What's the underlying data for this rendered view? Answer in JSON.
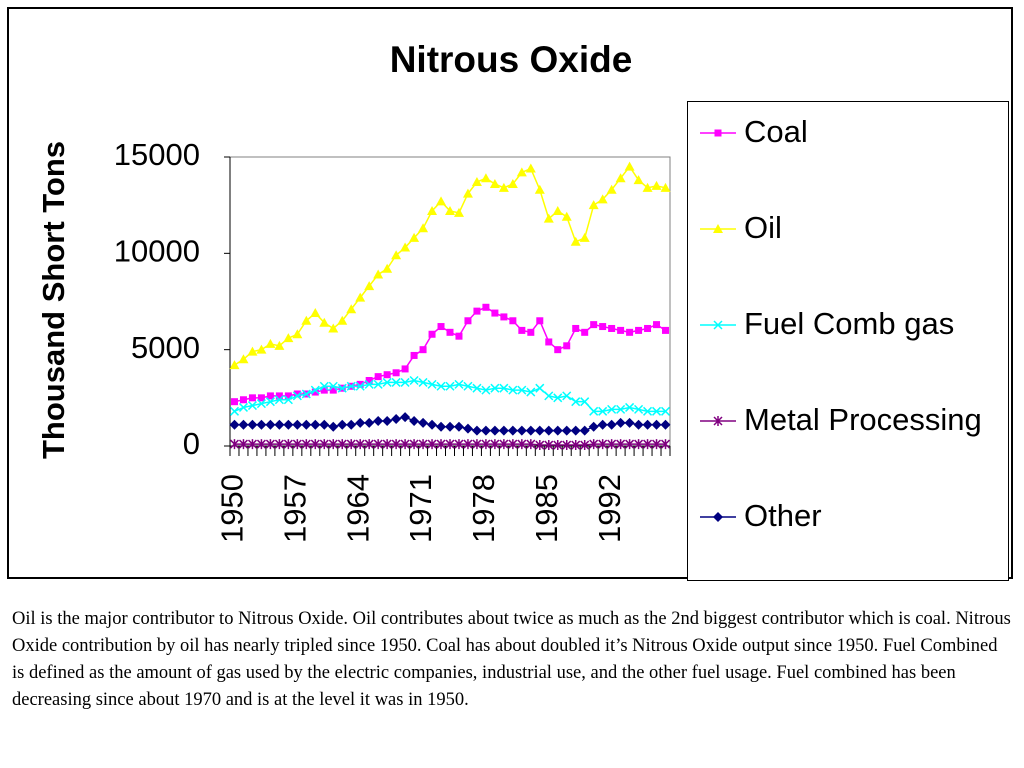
{
  "chart_data": {
    "type": "line",
    "title": "Nitrous Oxide",
    "y_label": "Thousand Short Tons",
    "categories": [
      "1950",
      null,
      null,
      null,
      null,
      null,
      null,
      "1957",
      null,
      null,
      null,
      null,
      null,
      null,
      "1964",
      null,
      null,
      null,
      null,
      null,
      null,
      "1971",
      null,
      null,
      null,
      null,
      null,
      null,
      "1978",
      null,
      null,
      null,
      null,
      null,
      null,
      "1985",
      null,
      null,
      null,
      null,
      null,
      null,
      "1992",
      null,
      null,
      null,
      null,
      null,
      null
    ],
    "ylim": [
      0,
      15000
    ],
    "yticks": [
      0,
      5000,
      10000,
      15000
    ],
    "series": [
      {
        "name": "Coal",
        "color": "#ff00ff",
        "marker": "square",
        "values": [
          2300,
          2400,
          2500,
          2500,
          2600,
          2600,
          2600,
          2700,
          2700,
          2800,
          2900,
          2900,
          3000,
          3100,
          3200,
          3400,
          3600,
          3700,
          3800,
          4000,
          4700,
          5000,
          5800,
          6200,
          5900,
          5700,
          6500,
          7000,
          7200,
          6900,
          6700,
          6500,
          6000,
          5900,
          6500,
          5400,
          5000,
          5200,
          6100,
          5900,
          6300,
          6200,
          6100,
          6000,
          5900,
          6000,
          6100,
          6300,
          6000
        ]
      },
      {
        "name": "Oil",
        "color": "#ffff00",
        "marker": "triangle",
        "values": [
          4200,
          4500,
          4900,
          5000,
          5300,
          5200,
          5600,
          5800,
          6500,
          6900,
          6400,
          6100,
          6500,
          7100,
          7700,
          8300,
          8900,
          9200,
          9900,
          10300,
          10800,
          11300,
          12200,
          12700,
          12200,
          12100,
          13100,
          13700,
          13900,
          13600,
          13400,
          13600,
          14200,
          14400,
          13300,
          11800,
          12200,
          11900,
          10600,
          10800,
          12500,
          12800,
          13300,
          13900,
          14500,
          13800,
          13400,
          13500,
          13400
        ]
      },
      {
        "name": "Fuel Comb gas",
        "color": "#00ffff",
        "marker": "x",
        "values": [
          1800,
          2000,
          2100,
          2200,
          2300,
          2400,
          2400,
          2600,
          2700,
          2900,
          3100,
          3100,
          3000,
          3100,
          3100,
          3200,
          3200,
          3300,
          3300,
          3300,
          3400,
          3300,
          3200,
          3100,
          3100,
          3200,
          3100,
          3000,
          2900,
          3000,
          3000,
          2900,
          2900,
          2800,
          3000,
          2600,
          2500,
          2600,
          2300,
          2300,
          1800,
          1800,
          1900,
          1900,
          2000,
          1900,
          1800,
          1800,
          1800
        ]
      },
      {
        "name": "Metal Processing",
        "color": "#800080",
        "marker": "asterisk",
        "values": [
          100,
          100,
          100,
          100,
          100,
          100,
          100,
          100,
          100,
          100,
          100,
          100,
          100,
          100,
          100,
          100,
          100,
          100,
          100,
          100,
          100,
          100,
          100,
          100,
          100,
          100,
          100,
          100,
          100,
          100,
          100,
          100,
          100,
          100,
          50,
          50,
          50,
          50,
          50,
          50,
          100,
          100,
          100,
          100,
          100,
          100,
          100,
          100,
          100
        ]
      },
      {
        "name": "Other",
        "color": "#000080",
        "marker": "diamond",
        "values": [
          1100,
          1100,
          1100,
          1100,
          1100,
          1100,
          1100,
          1100,
          1100,
          1100,
          1100,
          1000,
          1100,
          1100,
          1200,
          1200,
          1300,
          1300,
          1400,
          1500,
          1300,
          1200,
          1100,
          1000,
          1000,
          1000,
          900,
          800,
          800,
          800,
          800,
          800,
          800,
          800,
          800,
          800,
          800,
          800,
          800,
          800,
          1000,
          1100,
          1100,
          1200,
          1200,
          1100,
          1100,
          1100,
          1100
        ]
      }
    ]
  },
  "note": "Oil is the major contributor to Nitrous Oxide.  Oil contributes about twice as much as the 2nd biggest contributor which is coal.  Nitrous Oxide contribution by oil has nearly tripled since 1950.  Coal has about doubled it’s Nitrous Oxide output since 1950.  Fuel Combined is defined as the amount of gas used by the electric companies, industrial use, and the other fuel usage.  Fuel combined has been decreasing since about 1970 and is at the level it was in 1950."
}
